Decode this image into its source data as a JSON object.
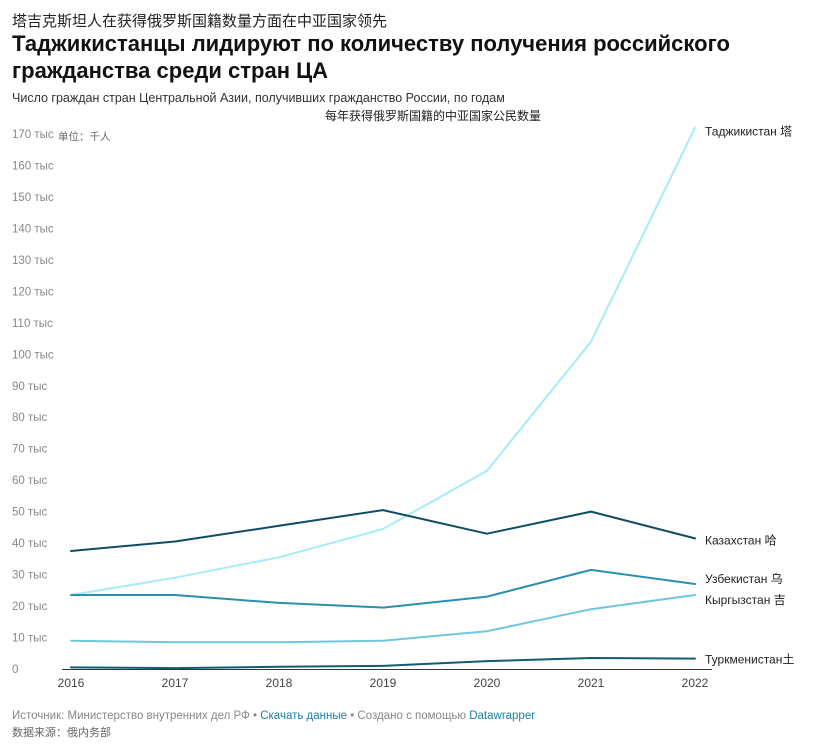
{
  "header": {
    "zh_title": "塔吉克斯坦人在获得俄罗斯国籍数量方面在中亚国家领先",
    "title": "Таджикистанцы лидируют по количеству получения российского гражданства среди стран ЦА",
    "subtitle": "Число граждан стран Центральной Азии, получивших гражданство России, по годам",
    "zh_subtitle": "每年获得俄罗斯国籍的中亚国家公民数量",
    "unit": "单位：千人"
  },
  "footer": {
    "source_label": "Источник: Министерство внутренних дел РФ",
    "sep1": " • ",
    "download_link": "Скачать данные",
    "sep2": " • Создано с помощью ",
    "tool_link": "Datawrapper",
    "zh_source": "数据来源：俄内务部"
  },
  "colors": {
    "tajikistan": "#a6ecf7",
    "kazakhstan": "#0e4d64",
    "uzbekistan": "#2b8fb0",
    "kyrgyzstan": "#6fc7dd",
    "turkmenistan": "#135a72"
  },
  "chart_data": {
    "type": "line",
    "x": [
      2016,
      2017,
      2018,
      2019,
      2020,
      2021,
      2022
    ],
    "ylim": [
      0,
      170
    ],
    "yticks": [
      0,
      10,
      20,
      30,
      40,
      50,
      60,
      70,
      80,
      90,
      100,
      110,
      120,
      130,
      140,
      150,
      160,
      170
    ],
    "ytick_labels": [
      "0",
      "10 тыс",
      "20 тыс",
      "30 тыс",
      "40 тыс",
      "50 тыс",
      "60 тыс",
      "70 тыс",
      "80 тыс",
      "90 тыс",
      "100 тыс",
      "110 тыс",
      "120 тыс",
      "130 тыс",
      "140 тыс",
      "150 тыс",
      "160 тыс",
      "170 тыс"
    ],
    "xtick_labels": [
      "2016",
      "2017",
      "2018",
      "2019",
      "2020",
      "2021",
      "2022"
    ],
    "grid": false,
    "series": [
      {
        "name": "Таджикистан 塔",
        "key": "tajikistan",
        "values": [
          23.5,
          29,
          35.5,
          44.5,
          63,
          104,
          172
        ]
      },
      {
        "name": "Казахстан 哈",
        "key": "kazakhstan",
        "values": [
          37.5,
          40.5,
          45.5,
          50.5,
          43,
          50,
          41.5
        ]
      },
      {
        "name": "Узбекистан 乌",
        "key": "uzbekistan",
        "values": [
          23.5,
          23.5,
          21,
          19.5,
          23,
          31.5,
          27
        ]
      },
      {
        "name": "Кыргызстан 吉",
        "key": "kyrgyzstan",
        "values": [
          9,
          8.5,
          8.5,
          9,
          12,
          19,
          23.5
        ]
      },
      {
        "name": "Туркменистан土",
        "key": "turkmenistan",
        "values": [
          0.5,
          0.3,
          0.7,
          1,
          2.5,
          3.5,
          3.3
        ]
      }
    ]
  }
}
